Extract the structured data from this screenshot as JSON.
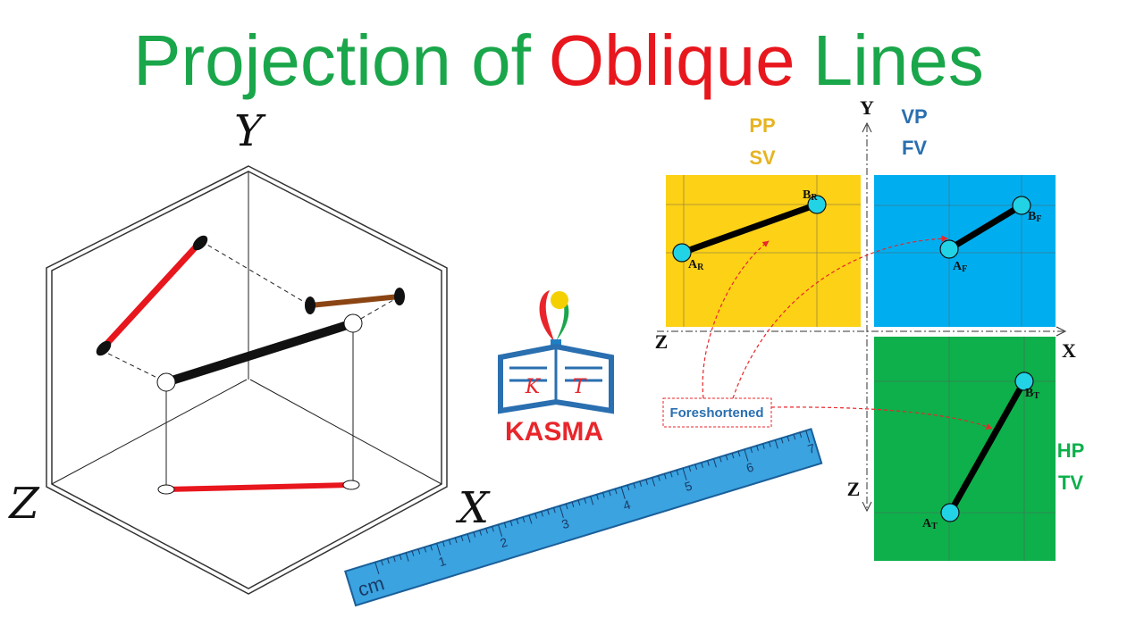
{
  "title": {
    "part1": "Projection of",
    "part2": "Oblique",
    "part3": "Lines"
  },
  "isometric": {
    "axes": {
      "y": "Y",
      "z": "Z",
      "x": "X"
    }
  },
  "logo": {
    "left": "K",
    "right": "T",
    "name": "KASMA"
  },
  "ruler": {
    "unit": "cm",
    "numbers": [
      "1",
      "2",
      "3",
      "4",
      "5",
      "6",
      "7"
    ]
  },
  "projection": {
    "axes": {
      "y": "Y",
      "x": "X",
      "z_left": "Z",
      "z_bottom": "Z"
    },
    "planes": {
      "pp": "PP",
      "sv": "SV",
      "vp": "VP",
      "fv": "FV",
      "hp": "HP",
      "tv": "TV"
    },
    "points": [
      {
        "main": "A",
        "sub": "R"
      },
      {
        "main": "B",
        "sub": "R"
      },
      {
        "main": "A",
        "sub": "F"
      },
      {
        "main": "B",
        "sub": "F"
      },
      {
        "main": "A",
        "sub": "T"
      },
      {
        "main": "B",
        "sub": "T"
      }
    ],
    "note": "Foreshortened"
  }
}
